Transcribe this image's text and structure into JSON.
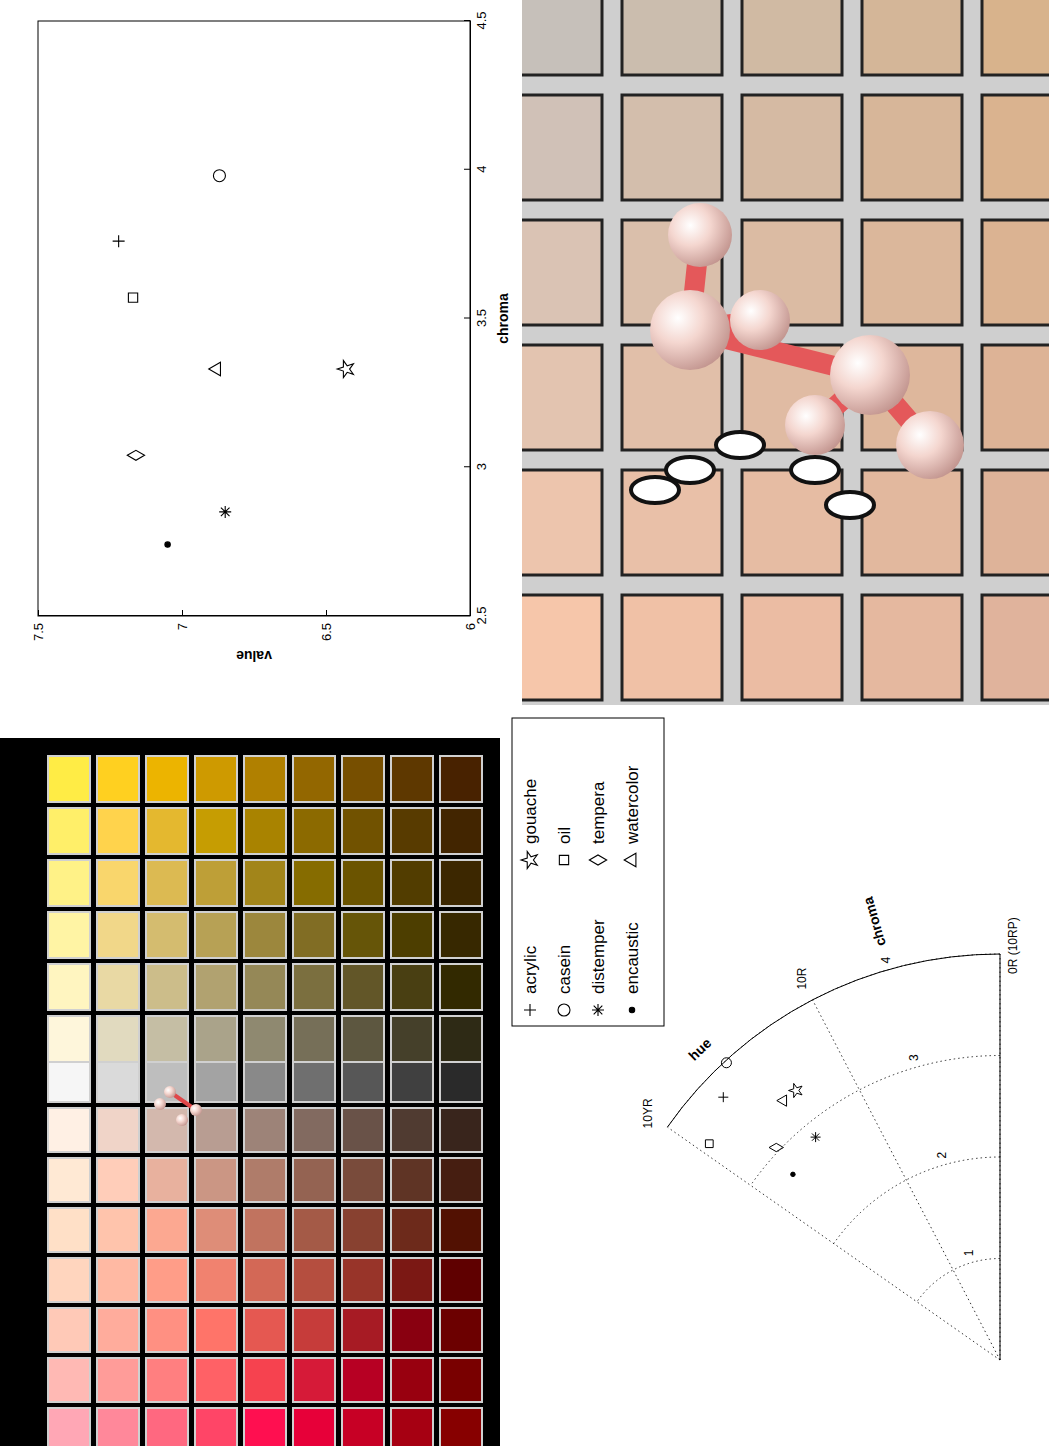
{
  "chart_data": [
    {
      "type": "scatter",
      "x_label": "chroma",
      "y_label": "value",
      "xlim": [
        2.5,
        4.5
      ],
      "xticks": [
        2.5,
        3,
        3.5,
        4,
        4.5
      ],
      "ylim": [
        6,
        7.5
      ],
      "yticks": [
        6,
        6.5,
        7,
        7.5
      ],
      "series": [
        {
          "marker": "plus",
          "x": [
            3.76
          ],
          "values": [
            7.22
          ]
        },
        {
          "marker": "circle",
          "x": [
            3.98
          ],
          "values": [
            6.87
          ]
        },
        {
          "marker": "asterisk",
          "x": [
            2.85
          ],
          "values": [
            6.85
          ]
        },
        {
          "marker": "dot",
          "x": [
            2.74
          ],
          "values": [
            7.05
          ]
        },
        {
          "marker": "star",
          "x": [
            3.33
          ],
          "values": [
            6.43
          ]
        },
        {
          "marker": "square",
          "x": [
            3.57
          ],
          "values": [
            7.17
          ]
        },
        {
          "marker": "diamond",
          "x": [
            3.04
          ],
          "values": [
            7.16
          ]
        },
        {
          "marker": "triangle",
          "x": [
            3.33
          ],
          "values": [
            6.88
          ]
        }
      ]
    },
    {
      "type": "polar",
      "r_label": "chroma",
      "theta_label": "hue",
      "rlim": [
        0,
        4
      ],
      "rticks": [
        1,
        2,
        3,
        4
      ],
      "thetalim": [
        0,
        20
      ],
      "thetaticks": [
        {
          "value": 0,
          "label": "0R (10RP)"
        },
        {
          "value": 10,
          "label": "10R"
        },
        {
          "value": 20,
          "label": "10YR"
        }
      ],
      "legend": "top-right",
      "series": [
        {
          "name": "acrylic",
          "marker": "plus",
          "theta": [
            16.9
          ],
          "r": [
            3.76
          ]
        },
        {
          "name": "casein",
          "marker": "circle",
          "theta": [
            15.5
          ],
          "r": [
            3.98
          ]
        },
        {
          "name": "distemper",
          "marker": "asterisk",
          "theta": [
            14.4
          ],
          "r": [
            2.85
          ]
        },
        {
          "name": "encaustic",
          "marker": "dot",
          "theta": [
            17.5
          ],
          "r": [
            2.74
          ]
        },
        {
          "name": "gouache",
          "marker": "star",
          "theta": [
            13.5
          ],
          "r": [
            3.33
          ]
        },
        {
          "name": "oil",
          "marker": "square",
          "theta": [
            19.4
          ],
          "r": [
            3.57
          ]
        },
        {
          "name": "tempera",
          "marker": "diamond",
          "theta": [
            16.9
          ],
          "r": [
            3.04
          ]
        },
        {
          "name": "watercolor",
          "marker": "triangle",
          "theta": [
            14.5
          ],
          "r": [
            3.33
          ]
        }
      ]
    }
  ]
}
